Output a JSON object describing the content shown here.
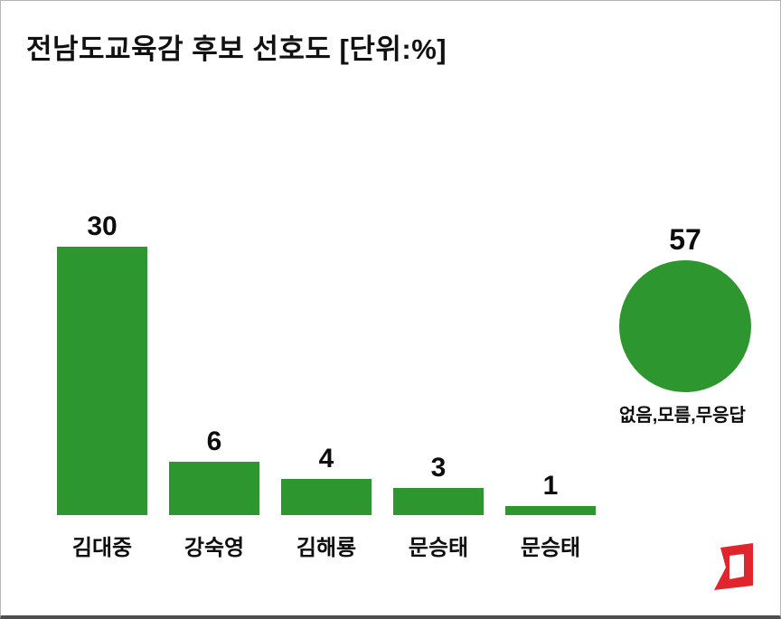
{
  "title": "전남도교육감 후보 선호도 [단위:%]",
  "chart_data": {
    "type": "bar",
    "title": "전남도교육감 후보 선호도 [단위:%]",
    "unit": "%",
    "categories": [
      "김대중",
      "강숙영",
      "김해룡",
      "문승태",
      "문승태"
    ],
    "values": [
      30,
      6,
      4,
      3,
      1
    ],
    "other_point": {
      "shape": "circle",
      "value": 57,
      "label": "없음,모름,무응답"
    },
    "bar_color": "#2e962e",
    "ylim": [
      0,
      30
    ],
    "grid": false,
    "legend": false,
    "data_labels": true
  },
  "logo": {
    "name": "asia-economy-logo",
    "color": "#e0262c"
  }
}
